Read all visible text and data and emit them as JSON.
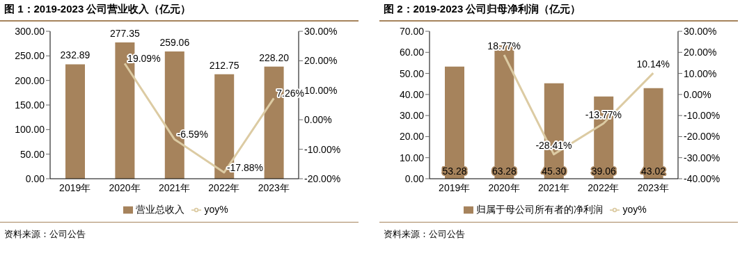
{
  "chart_data": [
    {
      "type": "bar",
      "title": "图 1：2019-2023 公司营业收入（亿元）",
      "categories": [
        "2019年",
        "2020年",
        "2021年",
        "2022年",
        "2023年"
      ],
      "series": [
        {
          "name": "营业总收入",
          "color": "#a6835c",
          "values": [
            232.89,
            277.35,
            259.06,
            212.75,
            228.2
          ],
          "value_labels": [
            "232.89",
            "277.35",
            "259.06",
            "212.75",
            "228.20"
          ]
        },
        {
          "name": "yoy%",
          "type": "line",
          "axis": "y2",
          "color": "#dccba3",
          "values": [
            null,
            19.09,
            -6.59,
            -17.88,
            7.26
          ],
          "value_labels": [
            null,
            "19.09%",
            "-6.59%",
            "-17.88%",
            "7.26%"
          ]
        }
      ],
      "ylim": [
        0,
        300
      ],
      "yticks": [
        {
          "value": 0,
          "label": "0.00"
        },
        {
          "value": 50,
          "label": "50.00"
        },
        {
          "value": 100,
          "label": "100.00"
        },
        {
          "value": 150,
          "label": "150.00"
        },
        {
          "value": 200,
          "label": "200.00"
        },
        {
          "value": 250,
          "label": "250.00"
        },
        {
          "value": 300,
          "label": "300.00"
        }
      ],
      "y2lim": [
        -20,
        30
      ],
      "y2ticks": [
        {
          "value": -20,
          "label": "-20.00%"
        },
        {
          "value": -10,
          "label": "-10.00%"
        },
        {
          "value": 0,
          "label": "0.00%"
        },
        {
          "value": 10,
          "label": "10.00%"
        },
        {
          "value": 20,
          "label": "20.00%"
        },
        {
          "value": 30,
          "label": "30.00%"
        }
      ],
      "legend": "bottom",
      "marker": "none",
      "line_style": "solid",
      "annotations": [
        "资料来源：公司公告"
      ]
    },
    {
      "type": "bar",
      "title": "图 2：2019-2023 公司归母净利润（亿元）",
      "categories": [
        "2019年",
        "2020年",
        "2021年",
        "2022年",
        "2023年"
      ],
      "series": [
        {
          "name": "归属于母公司所有者的净利润",
          "color": "#a6835c",
          "values": [
            53.28,
            63.28,
            45.3,
            39.06,
            43.02
          ],
          "value_labels": [
            "53.28",
            "63.28",
            "45.30",
            "39.06",
            "43.02"
          ]
        },
        {
          "name": "yoy%",
          "type": "line",
          "axis": "y2",
          "color": "#dccba3",
          "values": [
            null,
            18.77,
            -28.41,
            -13.77,
            10.14
          ],
          "value_labels": [
            null,
            "18.77%",
            "-28.41%",
            "-13.77%",
            "10.14%"
          ]
        }
      ],
      "ylim": [
        0,
        70
      ],
      "yticks": [
        {
          "value": 0,
          "label": "0.00"
        },
        {
          "value": 10,
          "label": "10.00"
        },
        {
          "value": 20,
          "label": "20.00"
        },
        {
          "value": 30,
          "label": "30.00"
        },
        {
          "value": 40,
          "label": "40.00"
        },
        {
          "value": 50,
          "label": "50.00"
        },
        {
          "value": 60,
          "label": "60.00"
        },
        {
          "value": 70,
          "label": "70.00"
        }
      ],
      "y2lim": [
        -40,
        30
      ],
      "y2ticks": [
        {
          "value": -40,
          "label": "-40.00%"
        },
        {
          "value": -30,
          "label": "-30.00%"
        },
        {
          "value": -20,
          "label": "-20.00%"
        },
        {
          "value": -10,
          "label": "-10.00%"
        },
        {
          "value": 0,
          "label": "0.00%"
        },
        {
          "value": 10,
          "label": "10.00%"
        },
        {
          "value": 20,
          "label": "20.00%"
        },
        {
          "value": 30,
          "label": "30.00%"
        }
      ],
      "legend": "bottom",
      "marker": "none",
      "line_style": "solid",
      "annotations": [
        "资料来源：公司公告"
      ]
    }
  ]
}
